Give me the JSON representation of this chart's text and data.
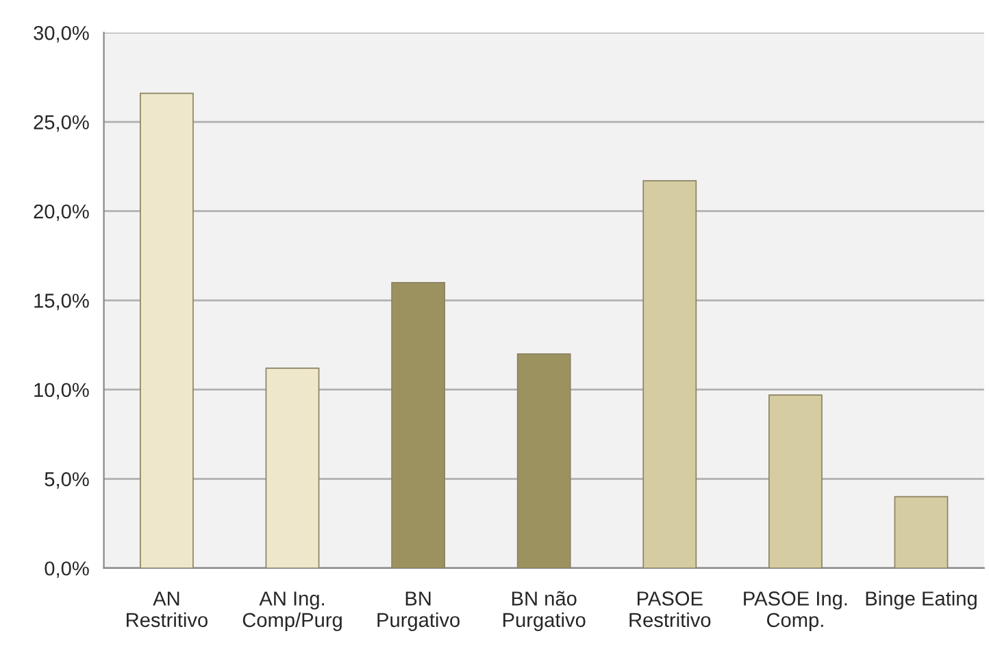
{
  "chart_data": {
    "type": "bar",
    "categories": [
      "AN\nRestritivo",
      "AN Ing.\nComp/Purg",
      "BN\nPurgativo",
      "BN não\nPurgativo",
      "PASOE\nRestritivo",
      "PASOE Ing.\nComp.",
      "Binge Eating"
    ],
    "values": [
      26.6,
      11.2,
      16.0,
      12.0,
      21.7,
      9.7,
      4.0
    ],
    "colors": [
      "#eee7cc",
      "#eee7cc",
      "#9c9260",
      "#9c9260",
      "#d5cca2",
      "#d5cca2",
      "#d5cca2"
    ],
    "ylim": [
      0,
      30
    ],
    "yticks": [
      {
        "value": 0,
        "label": "0,0%"
      },
      {
        "value": 5,
        "label": "5,0%"
      },
      {
        "value": 10,
        "label": "10,0%"
      },
      {
        "value": 15,
        "label": "15,0%"
      },
      {
        "value": 20,
        "label": "20,0%"
      },
      {
        "value": 25,
        "label": "25,0%"
      },
      {
        "value": 30,
        "label": "30,0%"
      }
    ],
    "grid": "y",
    "legend": false
  }
}
